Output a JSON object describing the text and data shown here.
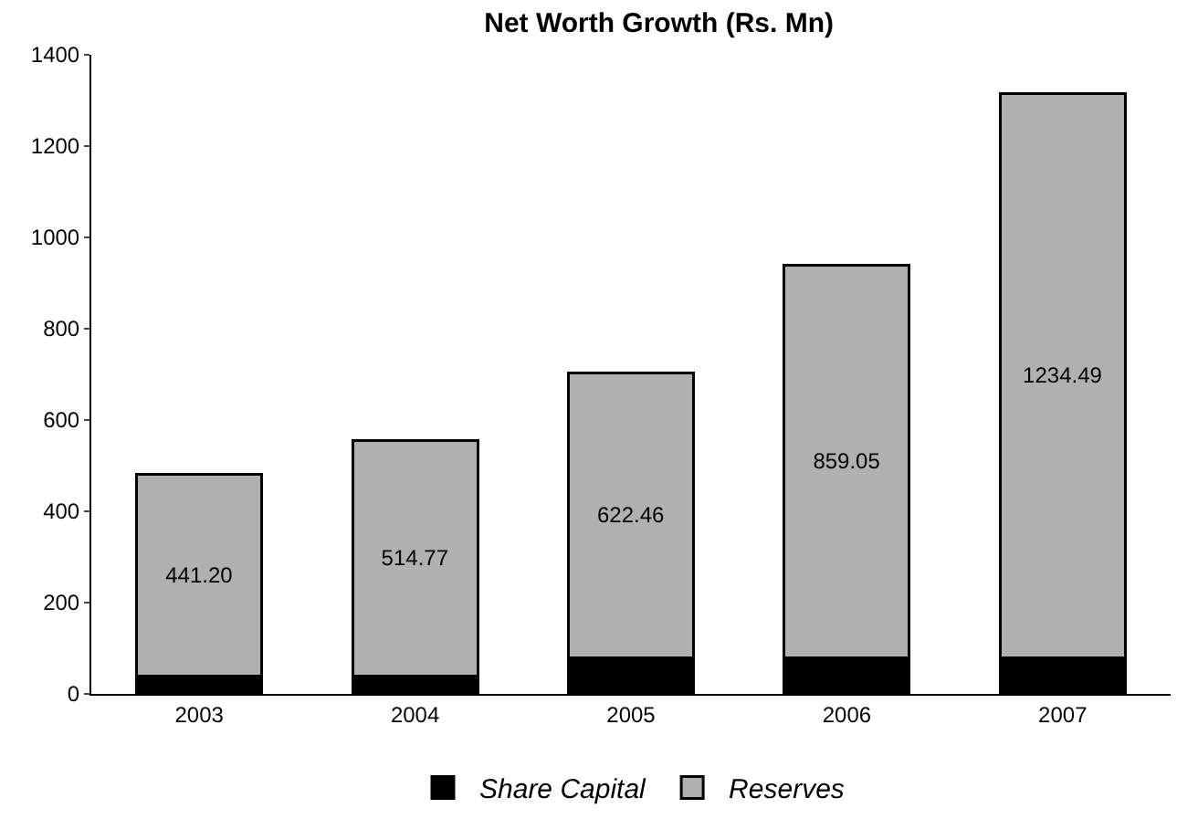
{
  "chart_data": {
    "type": "bar",
    "title": "Net Worth Growth (Rs. Mn)",
    "categories": [
      "2003",
      "2004",
      "2005",
      "2006",
      "2007"
    ],
    "stacked": true,
    "series": [
      {
        "name": "Share Capital",
        "color": "#000000",
        "values": [
          40,
          40,
          80,
          80,
          80
        ]
      },
      {
        "name": "Reserves",
        "color": "#b0b0b0",
        "values": [
          441.2,
          514.77,
          622.46,
          859.05,
          1234.49
        ],
        "value_labels": [
          "441.20",
          "514.77",
          "622.46",
          "859.05",
          "1234.49"
        ]
      }
    ],
    "ylim": [
      0,
      1400
    ],
    "yticks": [
      0,
      200,
      400,
      600,
      800,
      1000,
      1200,
      1400
    ],
    "grid": false,
    "legend": "bottom"
  }
}
